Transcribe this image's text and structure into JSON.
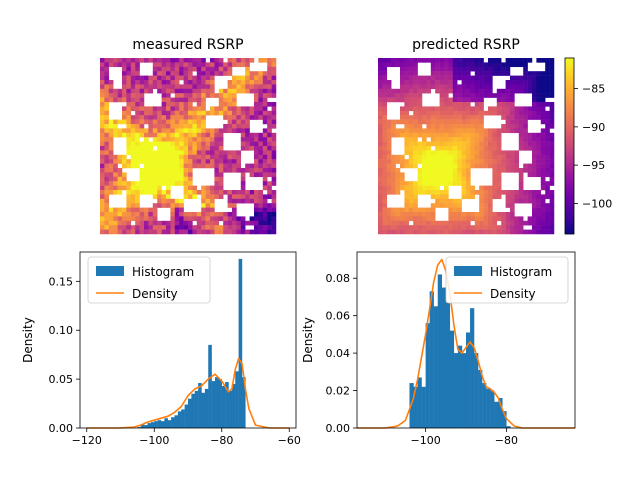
{
  "colors": {
    "histogram": "#1f77b4",
    "density": "#ff7f0e",
    "colormap": "plasma"
  },
  "chart_data": [
    {
      "type": "heatmap",
      "title": "measured RSRP",
      "axes_visible": false,
      "colormap": "plasma",
      "masked_color": "#ffffff"
    },
    {
      "type": "heatmap",
      "title": "predicted RSRP",
      "axes_visible": false,
      "colormap": "plasma",
      "masked_color": "#ffffff",
      "colorbar": {
        "range": [
          -104,
          -81
        ],
        "ticks": [
          -85,
          -90,
          -95,
          -100
        ],
        "tick_labels": [
          "−85",
          "−90",
          "−95",
          "−100"
        ]
      }
    },
    {
      "type": "bar",
      "subtype": "histogram+density",
      "xlabel": "",
      "ylabel": "Density",
      "xlim": [
        -122,
        -58
      ],
      "ylim": [
        0,
        0.18
      ],
      "xticks": [
        -120,
        -100,
        -80,
        -60
      ],
      "xtick_labels": [
        "−120",
        "−100",
        "−80",
        "−60"
      ],
      "yticks": [
        0,
        0.05,
        0.1,
        0.15
      ],
      "ytick_labels": [
        "0.00",
        "0.05",
        "0.10",
        "0.15"
      ],
      "legend": {
        "position": "top-left",
        "entries": [
          "Histogram",
          "Density"
        ]
      },
      "series": [
        {
          "name": "Histogram",
          "type": "histogram",
          "bins": [
            {
              "x0": -105,
              "x1": -104,
              "y": 0.001
            },
            {
              "x0": -104,
              "x1": -103,
              "y": 0.004
            },
            {
              "x0": -103,
              "x1": -102,
              "y": 0.003
            },
            {
              "x0": -102,
              "x1": -101,
              "y": 0.005
            },
            {
              "x0": -101,
              "x1": -100,
              "y": 0.006
            },
            {
              "x0": -100,
              "x1": -99,
              "y": 0.007
            },
            {
              "x0": -99,
              "x1": -98,
              "y": 0.008
            },
            {
              "x0": -98,
              "x1": -97,
              "y": 0.007
            },
            {
              "x0": -97,
              "x1": -96,
              "y": 0.01
            },
            {
              "x0": -96,
              "x1": -95,
              "y": 0.008
            },
            {
              "x0": -95,
              "x1": -94,
              "y": 0.011
            },
            {
              "x0": -94,
              "x1": -93,
              "y": 0.013
            },
            {
              "x0": -93,
              "x1": -92,
              "y": 0.017
            },
            {
              "x0": -92,
              "x1": -91,
              "y": 0.019
            },
            {
              "x0": -91,
              "x1": -90,
              "y": 0.024
            },
            {
              "x0": -90,
              "x1": -89,
              "y": 0.03
            },
            {
              "x0": -89,
              "x1": -88,
              "y": 0.035
            },
            {
              "x0": -88,
              "x1": -87,
              "y": 0.038
            },
            {
              "x0": -87,
              "x1": -86,
              "y": 0.046
            },
            {
              "x0": -86,
              "x1": -85,
              "y": 0.036
            },
            {
              "x0": -85,
              "x1": -84,
              "y": 0.04
            },
            {
              "x0": -84,
              "x1": -83,
              "y": 0.085
            },
            {
              "x0": -83,
              "x1": -82,
              "y": 0.048
            },
            {
              "x0": -82,
              "x1": -81,
              "y": 0.052
            },
            {
              "x0": -81,
              "x1": -80,
              "y": 0.05
            },
            {
              "x0": -80,
              "x1": -79,
              "y": 0.043
            },
            {
              "x0": -79,
              "x1": -78,
              "y": 0.047
            },
            {
              "x0": -78,
              "x1": -77,
              "y": 0.038
            },
            {
              "x0": -77,
              "x1": -76,
              "y": 0.045
            },
            {
              "x0": -76,
              "x1": -75,
              "y": 0.058
            },
            {
              "x0": -75,
              "x1": -74,
              "y": 0.173
            },
            {
              "x0": -74,
              "x1": -73,
              "y": 0.052
            }
          ]
        },
        {
          "name": "Density",
          "type": "line",
          "x": [
            -120,
            -110,
            -106,
            -104,
            -102,
            -100,
            -98,
            -96,
            -94,
            -92,
            -90,
            -88,
            -86,
            -84,
            -82,
            -80,
            -78,
            -77,
            -76,
            -75,
            -74,
            -73,
            -72,
            -70,
            -66,
            -60
          ],
          "y": [
            0.0,
            0.0,
            0.001,
            0.003,
            0.006,
            0.008,
            0.01,
            0.012,
            0.016,
            0.022,
            0.033,
            0.04,
            0.043,
            0.05,
            0.055,
            0.048,
            0.037,
            0.04,
            0.06,
            0.071,
            0.066,
            0.04,
            0.02,
            0.003,
            0.0,
            0.0
          ]
        }
      ]
    },
    {
      "type": "bar",
      "subtype": "histogram+density",
      "xlabel": "",
      "ylabel": "Density",
      "xlim": [
        -117,
        -63
      ],
      "ylim": [
        0,
        0.094
      ],
      "xticks": [
        -100,
        -80
      ],
      "xtick_labels": [
        "−100",
        "−80"
      ],
      "yticks": [
        0,
        0.02,
        0.04,
        0.06,
        0.08
      ],
      "ytick_labels": [
        "0.00",
        "0.02",
        "0.04",
        "0.06",
        "0.08"
      ],
      "legend": {
        "position": "top-right",
        "entries": [
          "Histogram",
          "Density"
        ]
      },
      "series": [
        {
          "name": "Histogram",
          "type": "histogram",
          "bins": [
            {
              "x0": -104,
              "x1": -103,
              "y": 0.024
            },
            {
              "x0": -103,
              "x1": -102,
              "y": 0.022
            },
            {
              "x0": -102,
              "x1": -101,
              "y": 0.027
            },
            {
              "x0": -101,
              "x1": -100,
              "y": 0.022
            },
            {
              "x0": -100,
              "x1": -99,
              "y": 0.056
            },
            {
              "x0": -99,
              "x1": -98,
              "y": 0.073
            },
            {
              "x0": -98,
              "x1": -97,
              "y": 0.065
            },
            {
              "x0": -97,
              "x1": -96,
              "y": 0.082
            },
            {
              "x0": -96,
              "x1": -95,
              "y": 0.075
            },
            {
              "x0": -95,
              "x1": -94,
              "y": 0.067
            },
            {
              "x0": -94,
              "x1": -93,
              "y": 0.052
            },
            {
              "x0": -93,
              "x1": -92,
              "y": 0.04
            },
            {
              "x0": -92,
              "x1": -91,
              "y": 0.044
            },
            {
              "x0": -91,
              "x1": -90,
              "y": 0.04
            },
            {
              "x0": -90,
              "x1": -89,
              "y": 0.051
            },
            {
              "x0": -89,
              "x1": -88,
              "y": 0.064
            },
            {
              "x0": -88,
              "x1": -87,
              "y": 0.04
            },
            {
              "x0": -87,
              "x1": -86,
              "y": 0.031
            },
            {
              "x0": -86,
              "x1": -85,
              "y": 0.024
            },
            {
              "x0": -85,
              "x1": -84,
              "y": 0.021
            },
            {
              "x0": -84,
              "x1": -83,
              "y": 0.02
            },
            {
              "x0": -83,
              "x1": -82,
              "y": 0.014
            },
            {
              "x0": -82,
              "x1": -81,
              "y": 0.016
            },
            {
              "x0": -81,
              "x1": -80,
              "y": 0.009
            },
            {
              "x0": -80,
              "x1": -79,
              "y": 0.001
            }
          ]
        },
        {
          "name": "Density",
          "type": "line",
          "x": [
            -117,
            -110,
            -107,
            -105,
            -104,
            -103,
            -102,
            -101,
            -100,
            -99,
            -98,
            -97,
            -96,
            -95,
            -94,
            -93,
            -92,
            -91,
            -90,
            -89,
            -88,
            -87,
            -86,
            -85,
            -84,
            -83,
            -82,
            -81,
            -80,
            -79,
            -78,
            -76,
            -70,
            -63
          ],
          "y": [
            0.0,
            0.0,
            0.001,
            0.004,
            0.01,
            0.016,
            0.026,
            0.038,
            0.05,
            0.064,
            0.078,
            0.087,
            0.09,
            0.084,
            0.072,
            0.055,
            0.042,
            0.04,
            0.043,
            0.046,
            0.043,
            0.036,
            0.028,
            0.022,
            0.021,
            0.019,
            0.016,
            0.01,
            0.005,
            0.003,
            0.001,
            0.0,
            0.0,
            0.0
          ]
        }
      ]
    }
  ]
}
